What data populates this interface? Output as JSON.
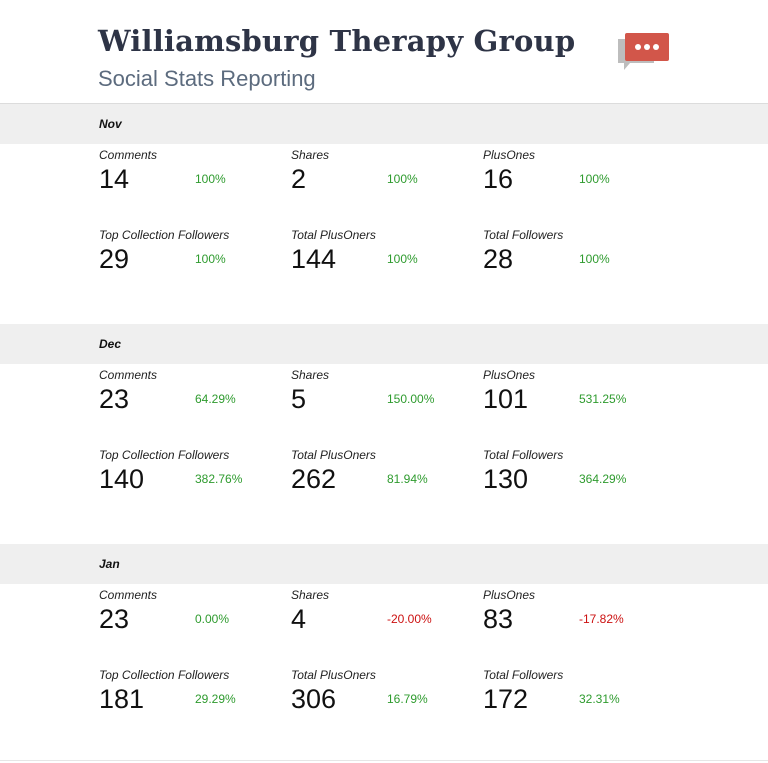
{
  "header": {
    "title": "Williamsburg Therapy Group",
    "subtitle": "Social Stats Reporting",
    "logo_icon": "chat-bubble-ellipsis-icon",
    "logo_color": "#d2564a"
  },
  "colors": {
    "positive": "#2e9b2e",
    "neutral": "#2e9b2e",
    "negative": "#cc1111",
    "section_bar": "#efefef"
  },
  "sections": [
    {
      "month": "Nov",
      "stats": [
        {
          "label": "Comments",
          "value": "14",
          "change": "100%",
          "trend": "positive"
        },
        {
          "label": "Shares",
          "value": "2",
          "change": "100%",
          "trend": "positive"
        },
        {
          "label": "PlusOnes",
          "value": "16",
          "change": "100%",
          "trend": "positive"
        },
        {
          "label": "Top Collection Followers",
          "value": "29",
          "change": "100%",
          "trend": "positive"
        },
        {
          "label": "Total PlusOners",
          "value": "144",
          "change": "100%",
          "trend": "positive"
        },
        {
          "label": "Total Followers",
          "value": "28",
          "change": "100%",
          "trend": "positive"
        }
      ]
    },
    {
      "month": "Dec",
      "stats": [
        {
          "label": "Comments",
          "value": "23",
          "change": "64.29%",
          "trend": "positive"
        },
        {
          "label": "Shares",
          "value": "5",
          "change": "150.00%",
          "trend": "positive"
        },
        {
          "label": "PlusOnes",
          "value": "101",
          "change": "531.25%",
          "trend": "positive"
        },
        {
          "label": "Top Collection Followers",
          "value": "140",
          "change": "382.76%",
          "trend": "positive"
        },
        {
          "label": "Total PlusOners",
          "value": "262",
          "change": "81.94%",
          "trend": "positive"
        },
        {
          "label": "Total Followers",
          "value": "130",
          "change": "364.29%",
          "trend": "positive"
        }
      ]
    },
    {
      "month": "Jan",
      "stats": [
        {
          "label": "Comments",
          "value": "23",
          "change": "0.00%",
          "trend": "neutral"
        },
        {
          "label": "Shares",
          "value": "4",
          "change": "-20.00%",
          "trend": "negative"
        },
        {
          "label": "PlusOnes",
          "value": "83",
          "change": "-17.82%",
          "trend": "negative"
        },
        {
          "label": "Top Collection Followers",
          "value": "181",
          "change": "29.29%",
          "trend": "positive"
        },
        {
          "label": "Total PlusOners",
          "value": "306",
          "change": "16.79%",
          "trend": "positive"
        },
        {
          "label": "Total Followers",
          "value": "172",
          "change": "32.31%",
          "trend": "positive"
        }
      ]
    }
  ]
}
